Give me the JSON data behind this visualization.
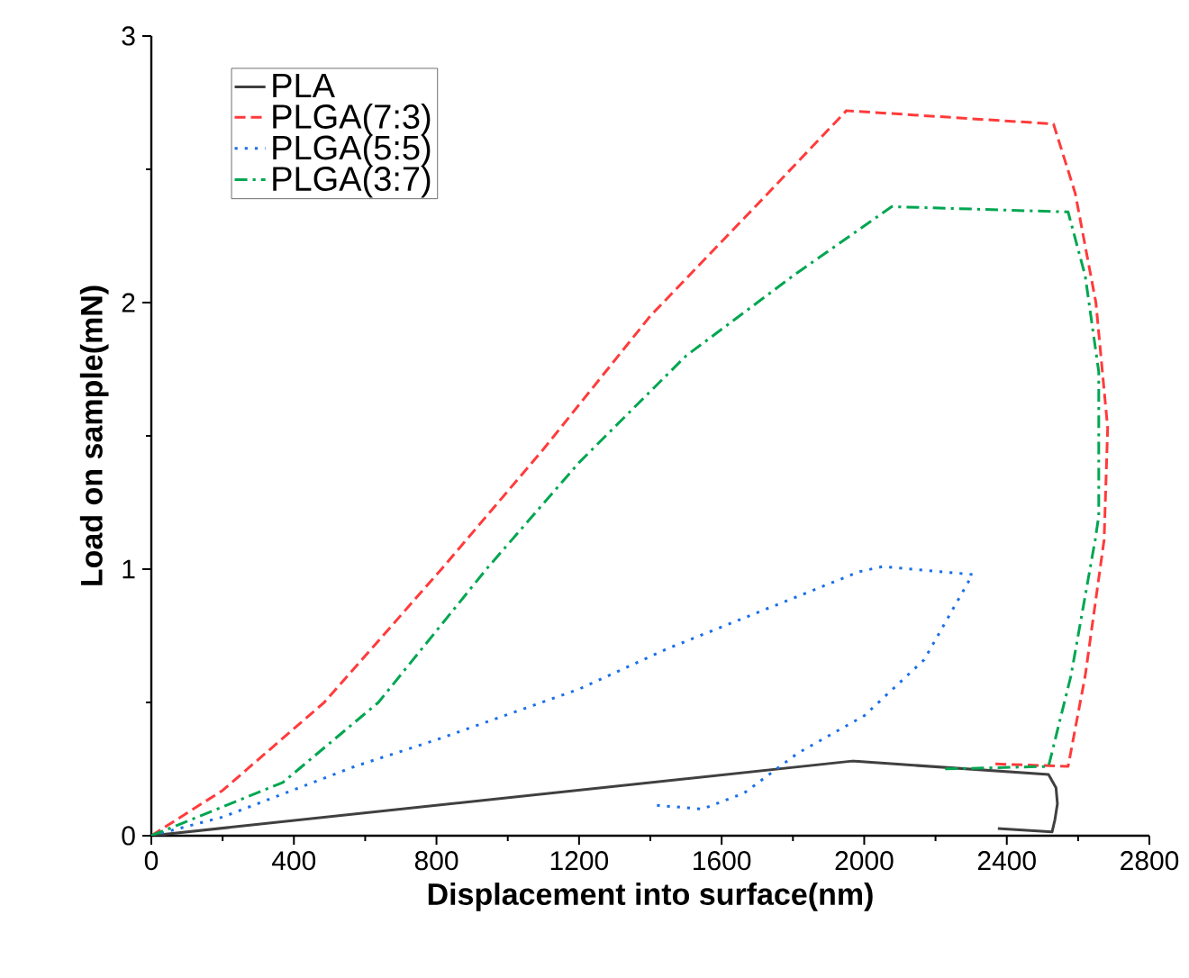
{
  "chart_data": {
    "type": "line",
    "xlabel": "Displacement into surface(nm)",
    "ylabel": "Load on sample(mN)",
    "xlim": [
      0,
      2800
    ],
    "xticks": [
      0,
      400,
      800,
      1200,
      1600,
      2000,
      2400,
      2800
    ],
    "ylim": [
      0,
      3
    ],
    "yticks": [
      0,
      1,
      2,
      3
    ],
    "legend": "top left",
    "grid": false,
    "marker": "none",
    "series": [
      {
        "name": "PLA",
        "color": "#404040",
        "line_style": "solid",
        "x": [
          0,
          1966,
          2517,
          2538,
          2542,
          2535,
          2527,
          2375
        ],
        "values": [
          0,
          0.28,
          0.23,
          0.18,
          0.12,
          0.06,
          0.014,
          0.027
        ]
      },
      {
        "name": "PLGA(7:3)",
        "color": "#ff3b3b",
        "line_style": "dashed",
        "x": [
          0,
          200,
          485,
          814,
          1100,
          1400,
          1723,
          1950,
          2531,
          2592,
          2650,
          2683,
          2673,
          2620,
          2572,
          2355
        ],
        "values": [
          0,
          0.17,
          0.5,
          1.0,
          1.45,
          1.95,
          2.4,
          2.72,
          2.67,
          2.41,
          2.0,
          1.53,
          1.11,
          0.6,
          0.26,
          0.27
        ]
      },
      {
        "name": "PLGA(5:5)",
        "color": "#1a6fe8",
        "line_style": "dotted",
        "x": [
          0,
          200,
          571,
          800,
          1200,
          1445,
          1799,
          1985,
          2052,
          2304,
          2168,
          2000,
          1814,
          1663,
          1546,
          1410
        ],
        "values": [
          0,
          0.07,
          0.26,
          0.36,
          0.55,
          0.7,
          0.89,
          0.99,
          1.01,
          0.98,
          0.66,
          0.45,
          0.31,
          0.16,
          0.1,
          0.115
        ]
      },
      {
        "name": "PLGA(3:7)",
        "color": "#00a651",
        "line_style": "dashdot",
        "x": [
          0,
          369,
          637,
          940,
          1200,
          1500,
          1800,
          2077,
          2572,
          2620,
          2658,
          2658,
          2648,
          2580,
          2517,
          2213
        ],
        "values": [
          0,
          0.2,
          0.5,
          1.0,
          1.4,
          1.8,
          2.1,
          2.36,
          2.34,
          2.1,
          1.74,
          1.2,
          1.11,
          0.6,
          0.26,
          0.25
        ]
      }
    ]
  }
}
